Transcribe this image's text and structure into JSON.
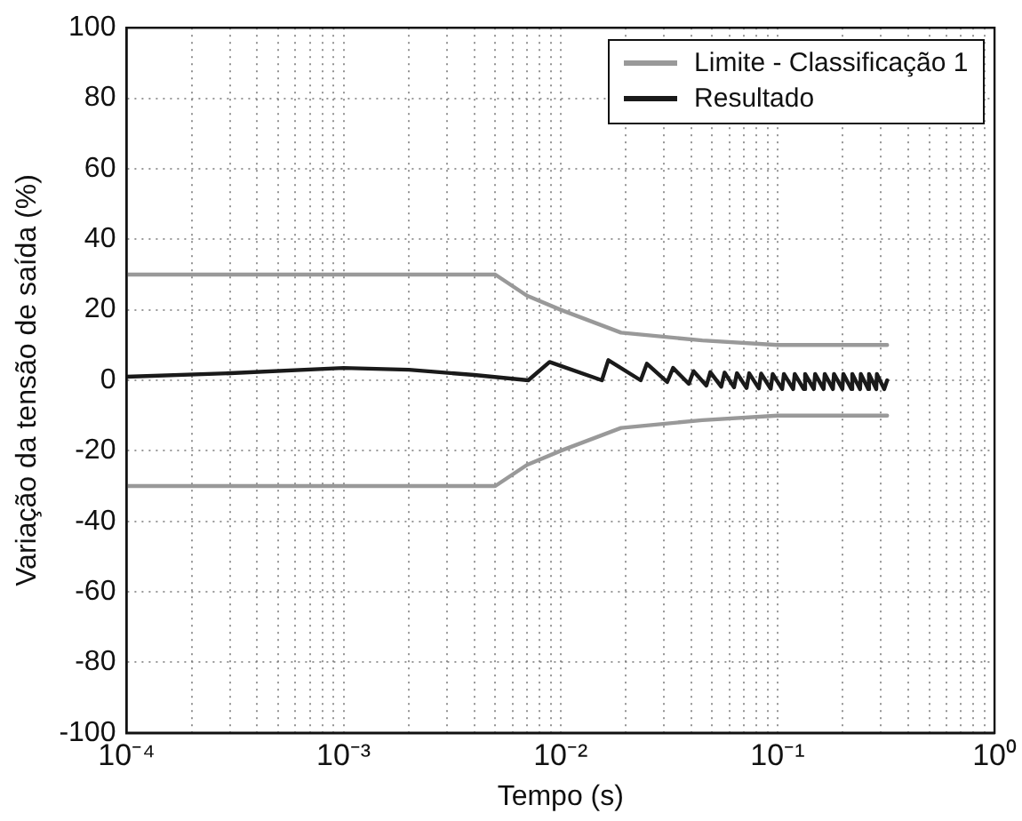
{
  "chart_data": {
    "type": "line",
    "xlabel": "Tempo (s)",
    "ylabel": "Variação da tensão de saída (%)",
    "log": "x",
    "grid": true,
    "legend": "top right",
    "marker": "none",
    "line_style": "solid",
    "xlim": [
      0.0001,
      1
    ],
    "ylim": [
      -100,
      100
    ],
    "xticks": [
      {
        "value": 0.0001,
        "label": "10⁻⁴"
      },
      {
        "value": 0.0002,
        "label": null
      },
      {
        "value": 0.0003,
        "label": null
      },
      {
        "value": 0.0004,
        "label": null
      },
      {
        "value": 0.0005,
        "label": null
      },
      {
        "value": 0.0006,
        "label": null
      },
      {
        "value": 0.0007,
        "label": null
      },
      {
        "value": 0.0008,
        "label": null
      },
      {
        "value": 0.0009,
        "label": null
      },
      {
        "value": 0.001,
        "label": "10⁻³"
      },
      {
        "value": 0.002,
        "label": null
      },
      {
        "value": 0.003,
        "label": null
      },
      {
        "value": 0.004,
        "label": null
      },
      {
        "value": 0.005,
        "label": null
      },
      {
        "value": 0.006,
        "label": null
      },
      {
        "value": 0.007,
        "label": null
      },
      {
        "value": 0.008,
        "label": null
      },
      {
        "value": 0.009,
        "label": null
      },
      {
        "value": 0.01,
        "label": "10⁻²"
      },
      {
        "value": 0.02,
        "label": null
      },
      {
        "value": 0.03,
        "label": null
      },
      {
        "value": 0.04,
        "label": null
      },
      {
        "value": 0.05,
        "label": null
      },
      {
        "value": 0.06,
        "label": null
      },
      {
        "value": 0.07,
        "label": null
      },
      {
        "value": 0.08,
        "label": null
      },
      {
        "value": 0.09,
        "label": null
      },
      {
        "value": 0.1,
        "label": "10⁻¹"
      },
      {
        "value": 0.2,
        "label": null
      },
      {
        "value": 0.3,
        "label": null
      },
      {
        "value": 0.4,
        "label": null
      },
      {
        "value": 0.5,
        "label": null
      },
      {
        "value": 0.6,
        "label": null
      },
      {
        "value": 0.7,
        "label": null
      },
      {
        "value": 0.8,
        "label": null
      },
      {
        "value": 0.9,
        "label": null
      },
      {
        "value": 1,
        "label": "10⁰"
      }
    ],
    "yticks": [
      -100,
      -80,
      -60,
      -40,
      -20,
      0,
      20,
      40,
      60,
      80,
      100
    ],
    "series": [
      {
        "name": "Limite - Classificação 1",
        "color": "#999999",
        "x": [
          0.0001,
          0.005,
          0.007,
          0.01,
          0.019,
          0.045,
          0.1,
          0.32
        ],
        "values": [
          30,
          30,
          24,
          20,
          13.5,
          11.3,
          10,
          10
        ]
      },
      {
        "color": "#999999",
        "x": [
          0.0001,
          0.005,
          0.007,
          0.01,
          0.019,
          0.045,
          0.1,
          0.32
        ],
        "values": [
          -30,
          -30,
          -24,
          -20,
          -13.5,
          -11.3,
          -10,
          -10
        ]
      },
      {
        "name": "Resultado",
        "color": "#1a1a1a",
        "x": [
          0.0001,
          0.0003,
          0.001,
          0.002,
          0.004,
          0.0071,
          0.0089,
          0.0155,
          0.0166,
          0.0234,
          0.025,
          0.031,
          0.033,
          0.039,
          0.041,
          0.047,
          0.049,
          0.055,
          0.057,
          0.063,
          0.065,
          0.072,
          0.074,
          0.082,
          0.084,
          0.093,
          0.095,
          0.105,
          0.107,
          0.118,
          0.12,
          0.132,
          0.134,
          0.147,
          0.149,
          0.163,
          0.165,
          0.18,
          0.182,
          0.199,
          0.201,
          0.219,
          0.221,
          0.24,
          0.242,
          0.262,
          0.264,
          0.285,
          0.287,
          0.31,
          0.32
        ],
        "values": [
          1,
          2,
          3.5,
          3,
          1.5,
          0,
          5.2,
          0,
          5.7,
          0,
          4.7,
          -0.5,
          3.5,
          -1,
          2.6,
          -1.5,
          2.3,
          -1.8,
          2.2,
          -2,
          2,
          -2.2,
          2,
          -2.3,
          1.9,
          -2.4,
          1.8,
          -2.5,
          1.8,
          -2.5,
          1.8,
          -2.5,
          1.8,
          -2.5,
          1.8,
          -2.5,
          1.8,
          -2.5,
          1.8,
          -2.5,
          1.8,
          -2.5,
          1.8,
          -2.5,
          1.8,
          -2.5,
          1.8,
          -2.5,
          1.8,
          -2.5,
          0
        ]
      }
    ]
  }
}
